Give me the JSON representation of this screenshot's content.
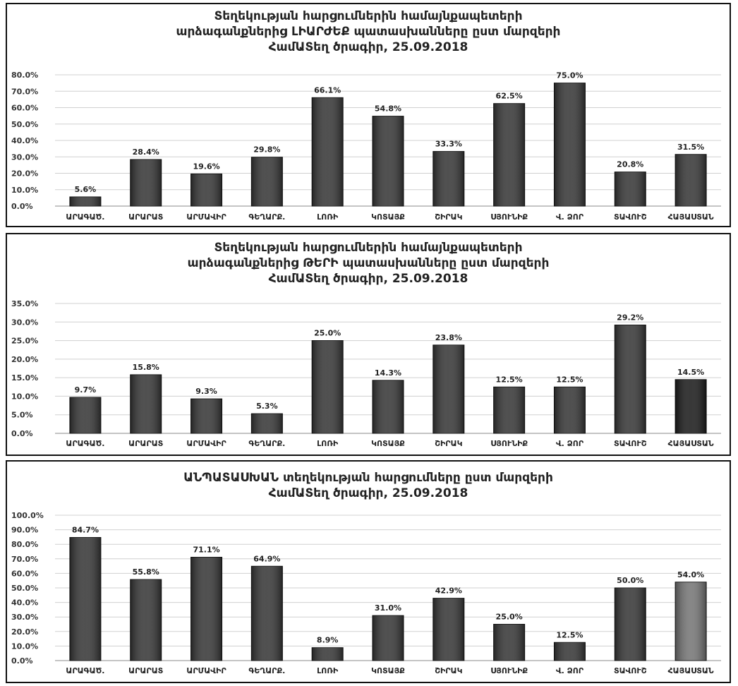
{
  "chart_data": [
    {
      "type": "bar",
      "title_lines": [
        "Տեղեկության հարցումներին համայնքապետերի",
        "արձագանքներից ԼԻԱՐԺԵՔ պատասխանները ըստ մարզերի",
        "ՀամԱՏեղ ծրագիր, 25.09.2018"
      ],
      "categories": [
        "ԱՐԱԳԱԾ.",
        "ԱՐԱՐԱՏ",
        "ԱՐՄԱՎԻՐ",
        "ԳԵՂԱՐՔ.",
        "ԼՈՌԻ",
        "ԿՈՏԱՅՔ",
        "ՇԻՐԱԿ",
        "ՍՅՈՒՆԻՔ",
        "Վ. ՁՈՐ",
        "ՏԱՎՈՒՇ",
        "ՀԱՅԱՍՏԱՆ"
      ],
      "values": [
        5.6,
        28.4,
        19.6,
        29.8,
        66.1,
        54.8,
        33.3,
        62.5,
        75.0,
        20.8,
        31.5
      ],
      "value_labels": [
        "5.6%",
        "28.4%",
        "19.6%",
        "29.8%",
        "66.1%",
        "54.8%",
        "33.3%",
        "62.5%",
        "75.0%",
        "20.8%",
        "31.5%"
      ],
      "ylim": [
        0,
        80
      ],
      "yticks": [
        0,
        10,
        20,
        30,
        40,
        50,
        60,
        70,
        80
      ],
      "ytick_labels": [
        "0.0%",
        "10.0%",
        "20.0%",
        "30.0%",
        "40.0%",
        "50.0%",
        "60.0%",
        "70.0%",
        "80.0%"
      ],
      "grid": true,
      "bar_colors": [
        "#383838",
        "#383838",
        "#383838",
        "#383838",
        "#383838",
        "#383838",
        "#383838",
        "#383838",
        "#383838",
        "#383838",
        "#383838"
      ]
    },
    {
      "type": "bar",
      "title_lines": [
        "Տեղեկության հարցումներին համայնքապետերի",
        "արձագանքներից ԹԵՐԻ պատասխանները ըստ մարզերի",
        "ՀամԱՏեղ ծրագիր, 25.09.2018"
      ],
      "categories": [
        "ԱՐԱԳԱԾ.",
        "ԱՐԱՐԱՏ",
        "ԱՐՄԱՎԻՐ",
        "ԳԵՂԱՐՔ.",
        "ԼՈՌԻ",
        "ԿՈՏԱՅՔ",
        "ՇԻՐԱԿ",
        "ՍՅՈՒՆԻՔ",
        "Վ. ՁՈՐ",
        "ՏԱՎՈՒՇ",
        "ՀԱՅԱՍՏԱՆ"
      ],
      "values": [
        9.7,
        15.8,
        9.3,
        5.3,
        25.0,
        14.3,
        23.8,
        12.5,
        12.5,
        29.2,
        14.5
      ],
      "value_labels": [
        "9.7%",
        "15.8%",
        "9.3%",
        "5.3%",
        "25.0%",
        "14.3%",
        "23.8%",
        "12.5%",
        "12.5%",
        "29.2%",
        "14.5%"
      ],
      "ylim": [
        0,
        35
      ],
      "yticks": [
        0,
        5,
        10,
        15,
        20,
        25,
        30,
        35
      ],
      "ytick_labels": [
        "0.0%",
        "5.0%",
        "10.0%",
        "15.0%",
        "20.0%",
        "25.0%",
        "30.0%",
        "35.0%"
      ],
      "grid": true,
      "bar_colors": [
        "#383838",
        "#383838",
        "#383838",
        "#383838",
        "#383838",
        "#383838",
        "#383838",
        "#383838",
        "#383838",
        "#383838",
        "#1c1c1c"
      ]
    },
    {
      "type": "bar",
      "title_lines": [
        "ԱՆՊԱՏԱՍԽԱՆ տեղեկության հարցումները ըստ մարզերի",
        "ՀամԱՏեղ ծրագիր, 25.09.2018"
      ],
      "categories": [
        "ԱՐԱԳԱԾ.",
        "ԱՐԱՐԱՏ",
        "ԱՐՄԱՎԻՐ",
        "ԳԵՂԱՐՔ.",
        "ԼՈՌԻ",
        "ԿՈՏԱՅՔ",
        "ՇԻՐԱԿ",
        "ՍՅՈՒՆԻՔ",
        "Վ. ՁՈՐ",
        "ՏԱՎՈՒՇ",
        "ՀԱՅԱՍՏԱՆ"
      ],
      "values": [
        84.7,
        55.8,
        71.1,
        64.9,
        8.9,
        31.0,
        42.9,
        25.0,
        12.5,
        50.0,
        54.0
      ],
      "value_labels": [
        "84.7%",
        "55.8%",
        "71.1%",
        "64.9%",
        "8.9%",
        "31.0%",
        "42.9%",
        "25.0%",
        "12.5%",
        "50.0%",
        "54.0%"
      ],
      "ylim": [
        0,
        100
      ],
      "yticks": [
        0,
        10,
        20,
        30,
        40,
        50,
        60,
        70,
        80,
        90,
        100
      ],
      "ytick_labels": [
        "0.0%",
        "10.0%",
        "20.0%",
        "30.0%",
        "40.0%",
        "50.0%",
        "60.0%",
        "70.0%",
        "80.0%",
        "90.0%",
        "100.0%"
      ],
      "grid": true,
      "bar_colors": [
        "#383838",
        "#383838",
        "#383838",
        "#383838",
        "#383838",
        "#383838",
        "#383838",
        "#383838",
        "#383838",
        "#383838",
        "#777777"
      ]
    }
  ]
}
